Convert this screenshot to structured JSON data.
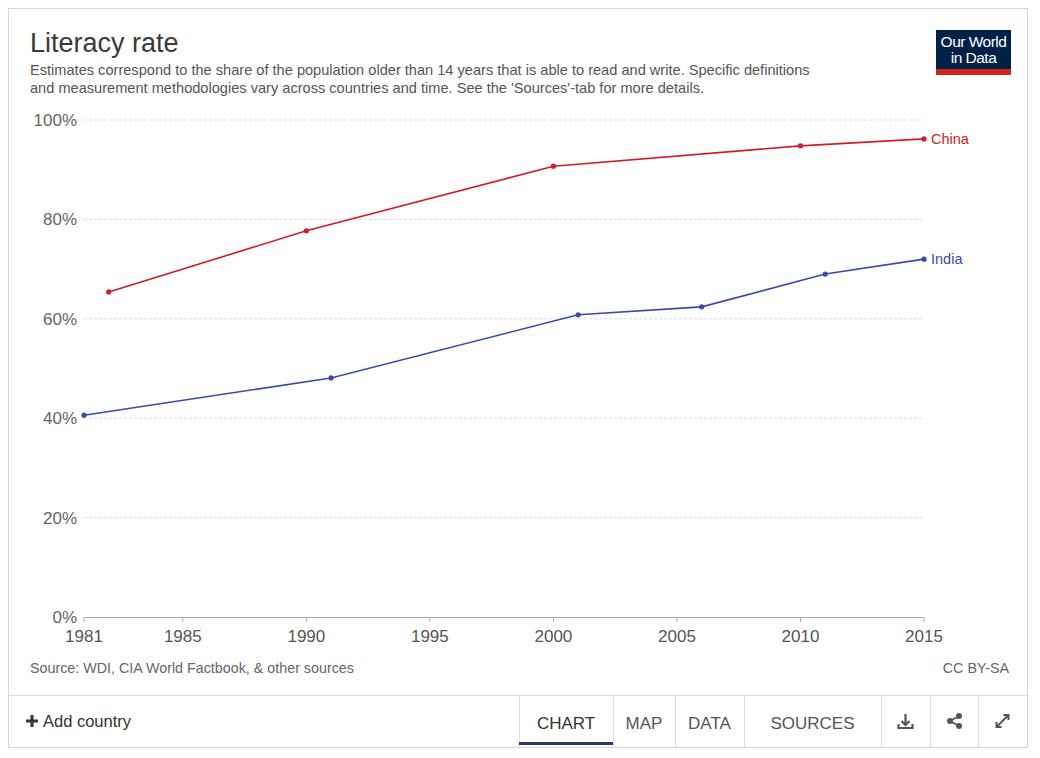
{
  "chart_data": {
    "type": "line",
    "title": "Literacy rate",
    "subtitle": [
      "Estimates correspond to the share of the population older than 14 years that is able to read and write. Specific definitions",
      "and measurement methodologies vary across countries and time. See the 'Sources'-tab for more details."
    ],
    "series": [
      {
        "name": "China",
        "color": "#d01c2a",
        "marker": "circle",
        "x": [
          1982,
          1990,
          2000,
          2010,
          2015
        ],
        "values": [
          65.4,
          77.7,
          90.7,
          94.8,
          96.2
        ]
      },
      {
        "name": "India",
        "color": "#3b4ba6",
        "marker": "circle",
        "x": [
          1981,
          1991,
          2001,
          2006,
          2011,
          2015
        ],
        "values": [
          40.6,
          48.1,
          60.8,
          62.4,
          69.0,
          72.0
        ]
      }
    ],
    "xlim": [
      1981,
      2015
    ],
    "xticks": [
      1981,
      1985,
      1990,
      1995,
      2000,
      2005,
      2010,
      2015
    ],
    "ylim": [
      0,
      100
    ],
    "yticks": [
      {
        "value": 0,
        "label": "0%"
      },
      {
        "value": 20,
        "label": "20%"
      },
      {
        "value": 40,
        "label": "40%"
      },
      {
        "value": 60,
        "label": "60%"
      },
      {
        "value": 80,
        "label": "80%"
      },
      {
        "value": 100,
        "label": "100%"
      }
    ],
    "grid": true
  },
  "page": {
    "source": "Source: WDI, CIA World Factbook, & other sources",
    "license": "CC BY-SA",
    "logo": [
      "Our World",
      "in Data"
    ],
    "add_country": "Add country",
    "tabs": [
      "CHART",
      "MAP",
      "DATA",
      "SOURCES"
    ]
  }
}
